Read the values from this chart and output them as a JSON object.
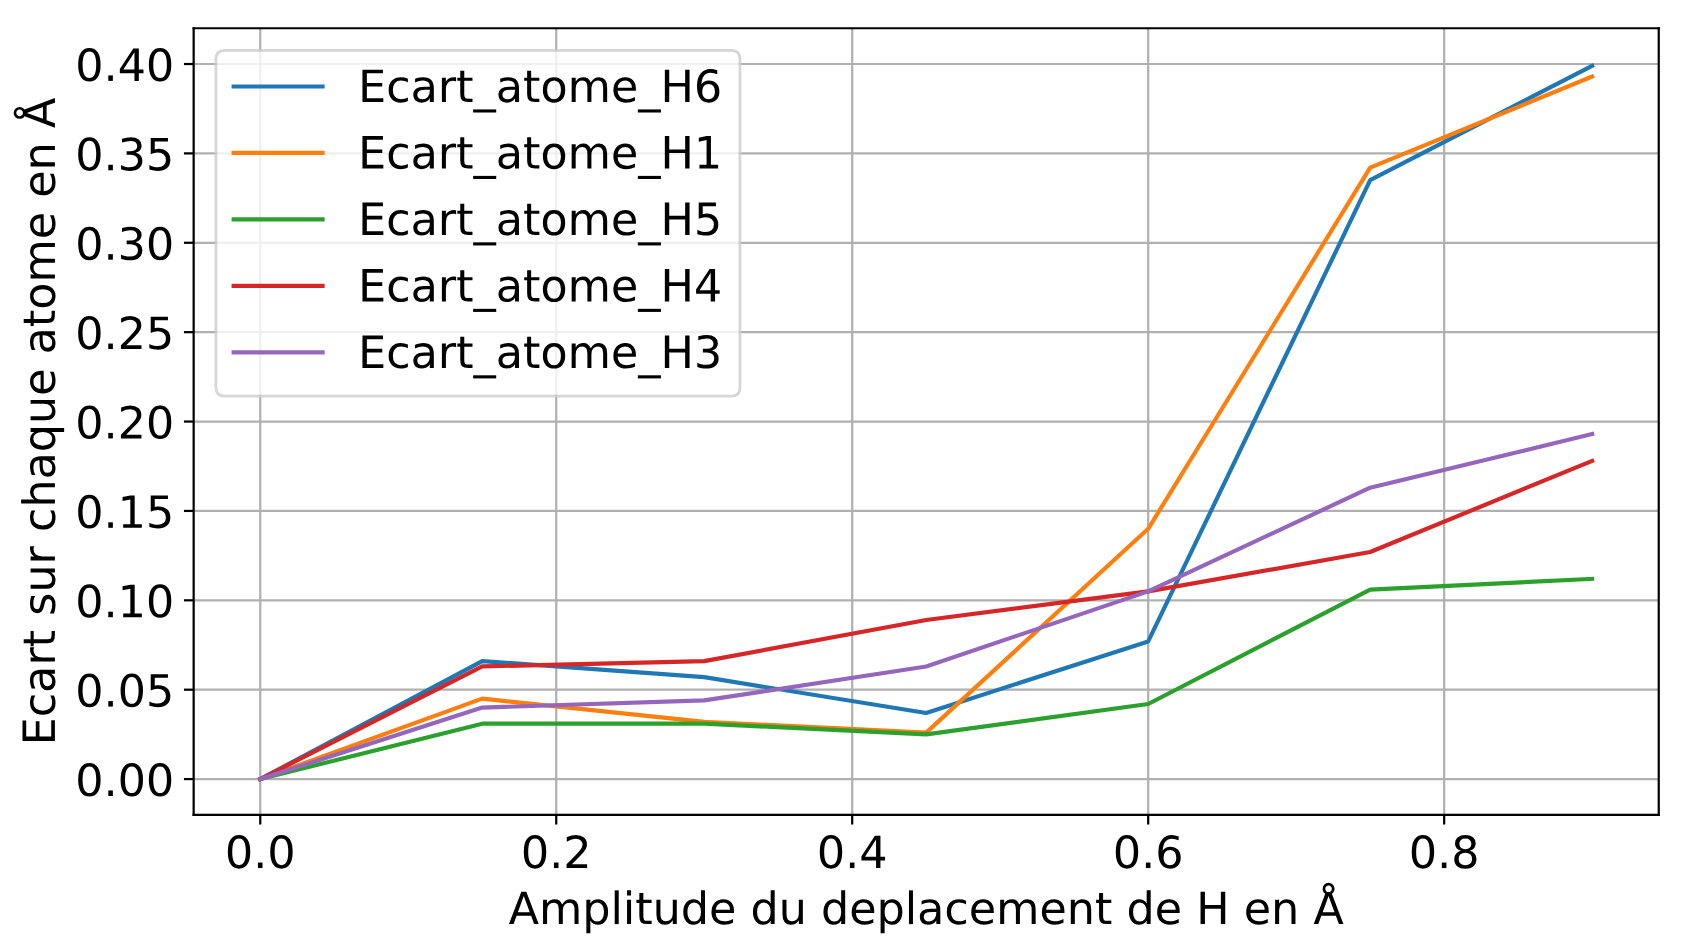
{
  "chart_data": {
    "type": "line",
    "xlabel": "Amplitude du deplacement de H en Å",
    "ylabel": "Ecart sur chaque atome en Å",
    "x": [
      0,
      0.15,
      0.3,
      0.45,
      0.6,
      0.75,
      0.9
    ],
    "series": [
      {
        "name": "Ecart_atome_H6",
        "color": "#1f77b4",
        "values": [
          0,
          0.066,
          0.057,
          0.037,
          0.077,
          0.335,
          0.399
        ]
      },
      {
        "name": "Ecart_atome_H1",
        "color": "#ff7f0e",
        "values": [
          0,
          0.045,
          0.032,
          0.026,
          0.14,
          0.342,
          0.393
        ]
      },
      {
        "name": "Ecart_atome_H5",
        "color": "#2ca02c",
        "values": [
          0,
          0.031,
          0.031,
          0.025,
          0.042,
          0.106,
          0.112
        ]
      },
      {
        "name": "Ecart_atome_H4",
        "color": "#d62728",
        "values": [
          0,
          0.063,
          0.066,
          0.089,
          0.105,
          0.127,
          0.178
        ]
      },
      {
        "name": "Ecart_atome_H3",
        "color": "#9467bd",
        "values": [
          0,
          0.04,
          0.044,
          0.063,
          0.105,
          0.163,
          0.193
        ]
      }
    ],
    "xlim": [
      -0.045,
      0.945
    ],
    "ylim": [
      -0.02,
      0.42
    ],
    "xticks": [
      {
        "value": 0,
        "label": "0.0"
      },
      0.2,
      0.4,
      0.6,
      0.8
    ],
    "yticks": [
      {
        "value": 0,
        "label": "0.00"
      },
      0.05,
      {
        "value": 0.1,
        "label": "0.10"
      },
      0.15,
      {
        "value": 0.2,
        "label": "0.20"
      },
      0.25,
      {
        "value": 0.3,
        "label": "0.30"
      },
      0.35,
      {
        "value": 0.4,
        "label": "0.40"
      }
    ],
    "grid": true,
    "legend": "top left",
    "marker": "none",
    "line_style": "solid"
  }
}
